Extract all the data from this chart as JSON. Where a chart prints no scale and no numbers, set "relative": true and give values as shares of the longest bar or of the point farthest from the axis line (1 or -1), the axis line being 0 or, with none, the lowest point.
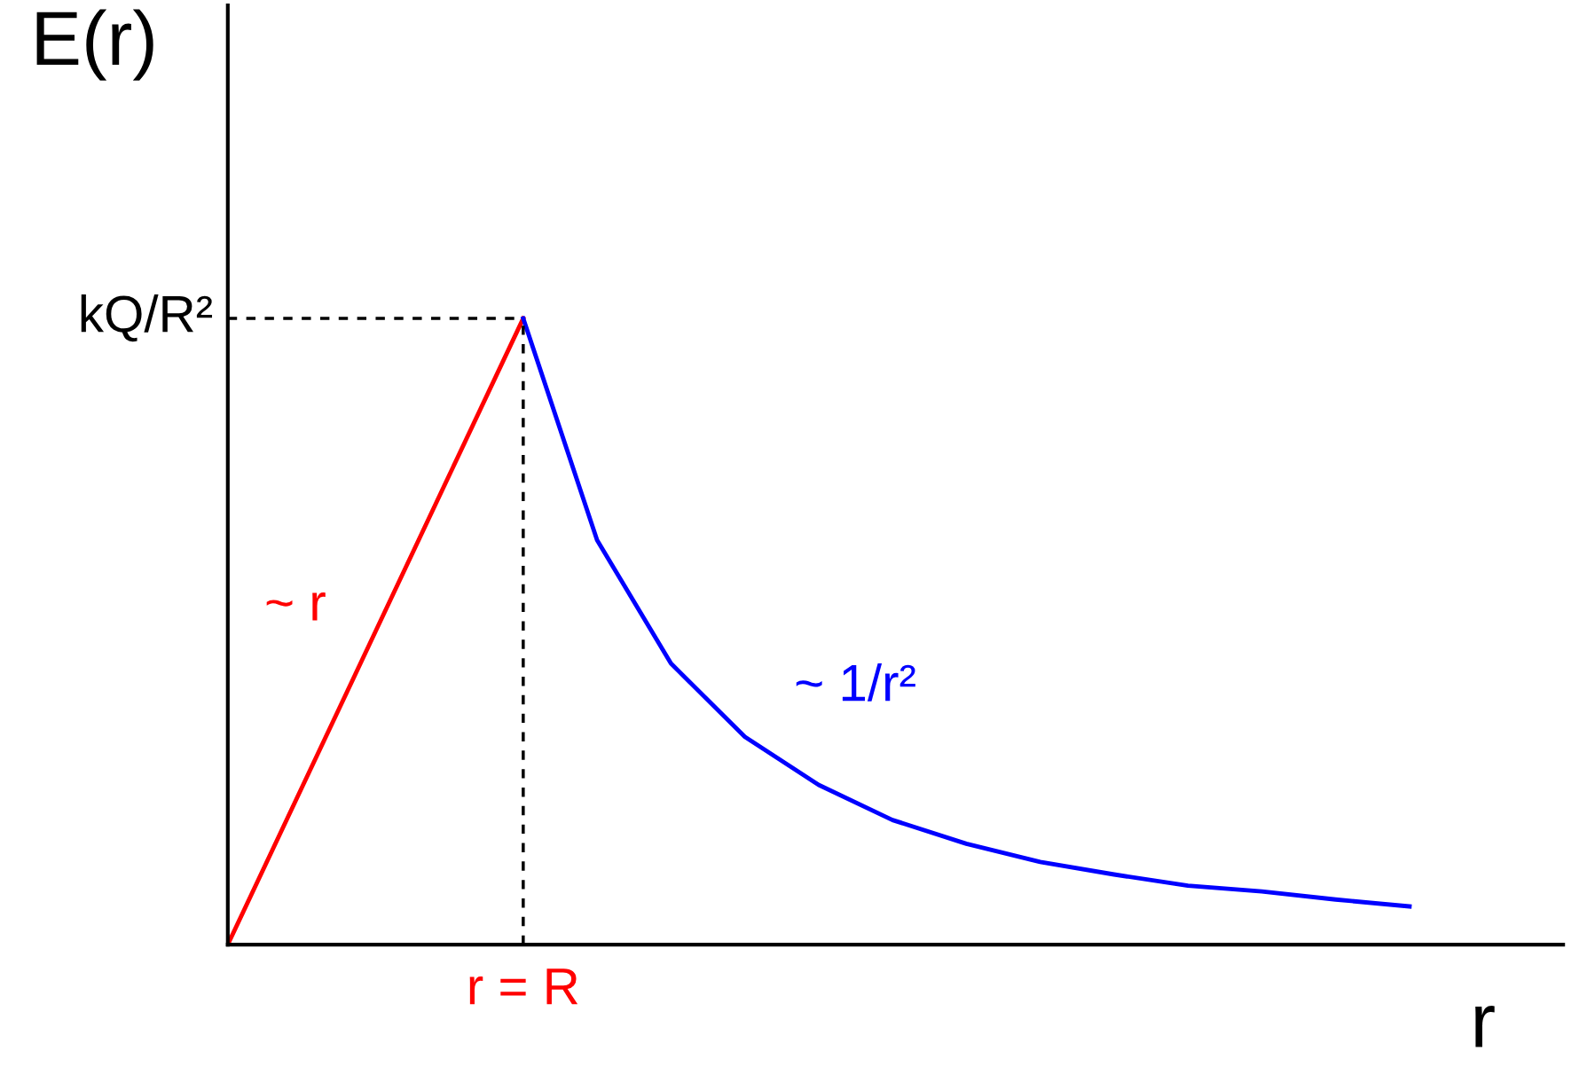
{
  "chart_data": {
    "type": "line",
    "relative": true,
    "xlabel": "r",
    "ylabel": "E(r)",
    "categories": [
      null,
      null,
      null,
      null,
      null,
      null,
      null,
      null,
      null,
      null,
      null,
      null,
      null,
      null,
      null,
      null,
      null
    ],
    "series": [
      {
        "color": "#ff0000",
        "values": [
          0,
          0.25,
          0.5,
          0.75,
          1,
          null,
          null,
          null,
          null,
          null,
          null,
          null,
          null,
          null,
          null,
          null,
          null
        ]
      },
      {
        "color": "#0000ff",
        "values": [
          null,
          null,
          null,
          null,
          1,
          0.646,
          0.449,
          0.332,
          0.255,
          0.199,
          0.161,
          0.132,
          0.112,
          0.094,
          0.085,
          0.072,
          0.061
        ]
      }
    ],
    "ref_lines": [
      {
        "axis": "y",
        "value": 1,
        "label": "kQ/R²",
        "color": "#000000",
        "line_style": "dashed"
      }
    ],
    "annotations": [
      "~ r",
      "~ 1/r²",
      "r = R"
    ]
  }
}
